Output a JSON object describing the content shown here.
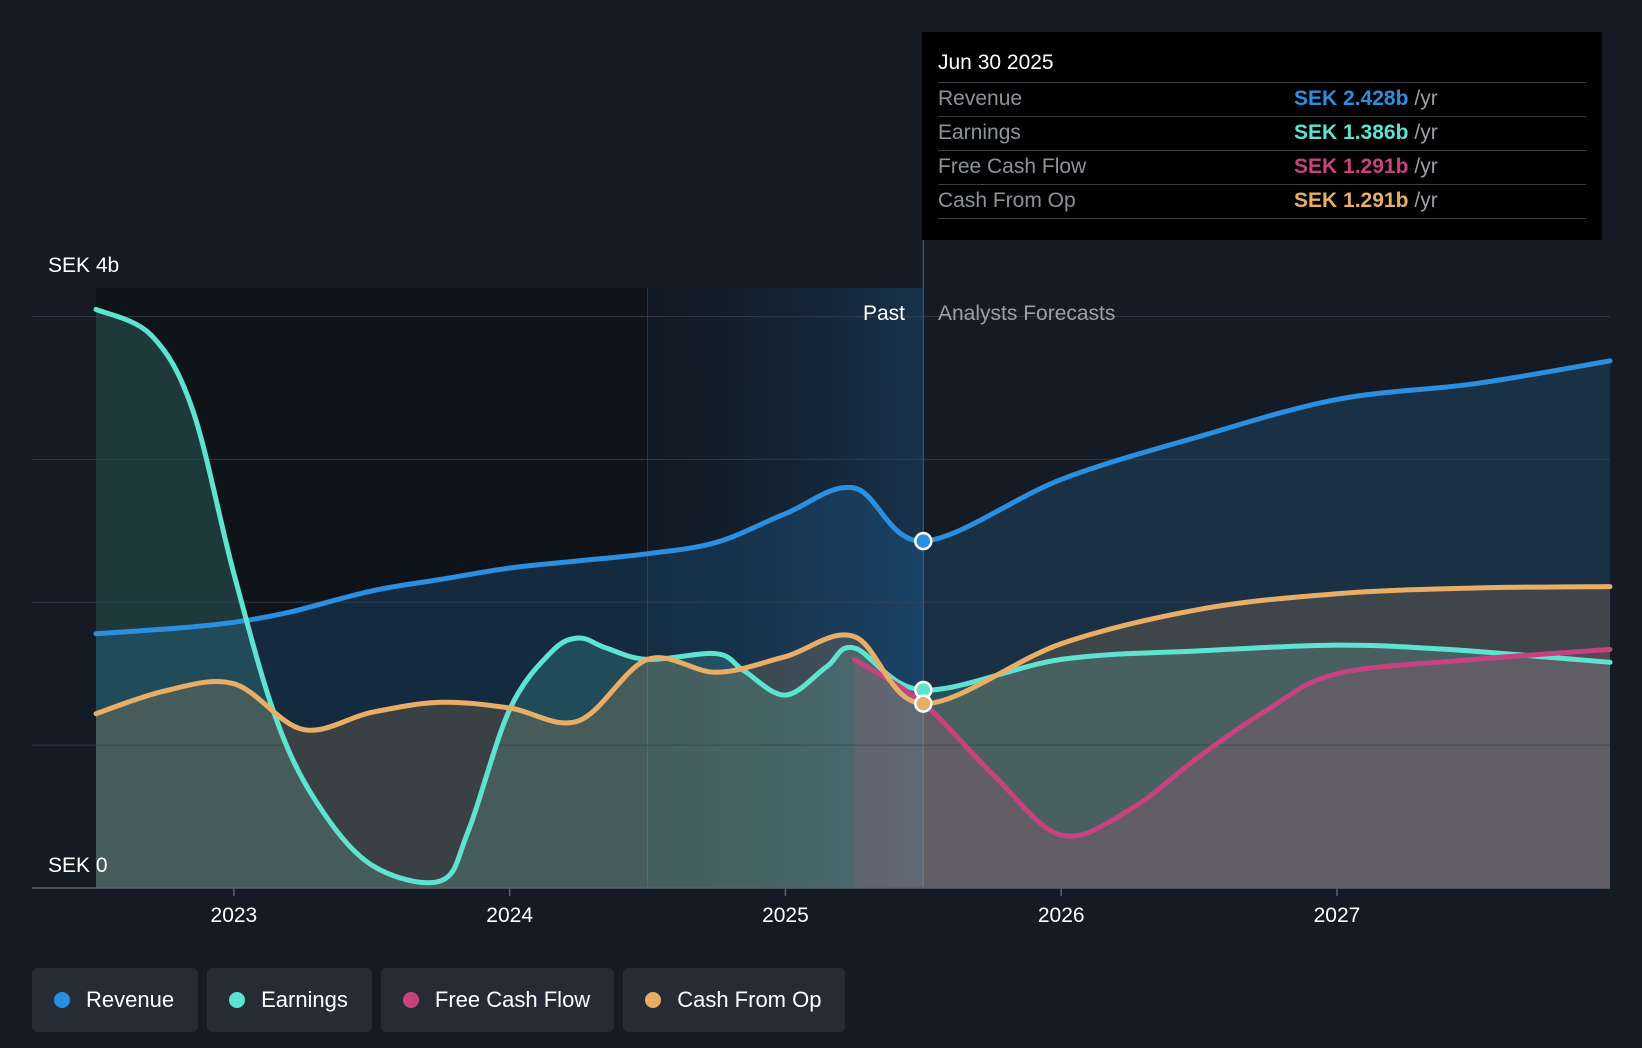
{
  "chart_data": {
    "type": "line",
    "currency": "SEK",
    "y_top_label": "SEK 4b",
    "y_bottom_label": "SEK 0",
    "ylim": [
      0,
      4.2
    ],
    "xlim": [
      2022.5,
      2027.99
    ],
    "x_ticks": [
      {
        "label": "2023",
        "value": 2023.0
      },
      {
        "label": "2024",
        "value": 2024.0
      },
      {
        "label": "2025",
        "value": 2025.0
      },
      {
        "label": "2026",
        "value": 2026.0
      },
      {
        "label": "2027",
        "value": 2027.0
      }
    ],
    "past_label": "Past",
    "forecast_label": "Analysts Forecasts",
    "past_end": 2025.5,
    "highlight_start": 2024.5,
    "series": [
      {
        "name": "Revenue",
        "color": "#2a8fe0",
        "points": [
          [
            2022.5,
            1.78
          ],
          [
            2022.8,
            1.82
          ],
          [
            2023.0,
            1.86
          ],
          [
            2023.2,
            1.93
          ],
          [
            2023.5,
            2.08
          ],
          [
            2023.75,
            2.16
          ],
          [
            2024.0,
            2.24
          ],
          [
            2024.25,
            2.29
          ],
          [
            2024.5,
            2.34
          ],
          [
            2024.75,
            2.42
          ],
          [
            2025.0,
            2.62
          ],
          [
            2025.25,
            2.8
          ],
          [
            2025.5,
            2.428
          ],
          [
            2026.0,
            2.86
          ],
          [
            2026.5,
            3.16
          ],
          [
            2027.0,
            3.42
          ],
          [
            2027.5,
            3.53
          ],
          [
            2027.99,
            3.69
          ]
        ]
      },
      {
        "name": "Earnings",
        "color": "#5fe3d1",
        "points": [
          [
            2022.5,
            4.05
          ],
          [
            2022.7,
            3.87
          ],
          [
            2022.85,
            3.35
          ],
          [
            2023.0,
            2.2
          ],
          [
            2023.15,
            1.2
          ],
          [
            2023.3,
            0.6
          ],
          [
            2023.5,
            0.16
          ],
          [
            2023.75,
            0.05
          ],
          [
            2023.85,
            0.4
          ],
          [
            2024.0,
            1.25
          ],
          [
            2024.15,
            1.65
          ],
          [
            2024.25,
            1.75
          ],
          [
            2024.35,
            1.68
          ],
          [
            2024.5,
            1.6
          ],
          [
            2024.75,
            1.64
          ],
          [
            2024.85,
            1.52
          ],
          [
            2025.0,
            1.35
          ],
          [
            2025.15,
            1.55
          ],
          [
            2025.25,
            1.68
          ],
          [
            2025.5,
            1.386
          ],
          [
            2026.0,
            1.6
          ],
          [
            2026.5,
            1.66
          ],
          [
            2027.0,
            1.7
          ],
          [
            2027.4,
            1.67
          ],
          [
            2027.99,
            1.58
          ]
        ]
      },
      {
        "name": "Free Cash Flow",
        "color": "#c7437f",
        "points": [
          [
            2025.25,
            1.6
          ],
          [
            2025.5,
            1.291
          ],
          [
            2025.75,
            0.8
          ],
          [
            2026.0,
            0.37
          ],
          [
            2026.25,
            0.55
          ],
          [
            2026.5,
            0.92
          ],
          [
            2026.75,
            1.25
          ],
          [
            2027.0,
            1.5
          ],
          [
            2027.5,
            1.6
          ],
          [
            2027.99,
            1.67
          ]
        ]
      },
      {
        "name": "Cash From Op",
        "color": "#e8ae65",
        "points": [
          [
            2022.5,
            1.22
          ],
          [
            2022.75,
            1.38
          ],
          [
            2023.0,
            1.43
          ],
          [
            2023.25,
            1.11
          ],
          [
            2023.5,
            1.23
          ],
          [
            2023.75,
            1.3
          ],
          [
            2024.0,
            1.26
          ],
          [
            2024.25,
            1.17
          ],
          [
            2024.5,
            1.6
          ],
          [
            2024.75,
            1.51
          ],
          [
            2025.0,
            1.62
          ],
          [
            2025.25,
            1.76
          ],
          [
            2025.5,
            1.291
          ],
          [
            2026.0,
            1.71
          ],
          [
            2026.5,
            1.95
          ],
          [
            2027.0,
            2.06
          ],
          [
            2027.5,
            2.1
          ],
          [
            2027.99,
            2.11
          ]
        ]
      }
    ],
    "markers": [
      {
        "series": "Revenue",
        "x": 2025.5,
        "y": 2.428
      },
      {
        "series": "Earnings",
        "x": 2025.5,
        "y": 1.386
      },
      {
        "series": "Cash From Op",
        "x": 2025.5,
        "y": 1.291
      }
    ]
  },
  "tooltip": {
    "date": "Jun 30 2025",
    "rows": [
      {
        "label": "Revenue",
        "value": "SEK 2.428b",
        "unit": "/yr",
        "color": "#2a8fe0"
      },
      {
        "label": "Earnings",
        "value": "SEK 1.386b",
        "unit": "/yr",
        "color": "#5fe3d1"
      },
      {
        "label": "Free Cash Flow",
        "value": "SEK 1.291b",
        "unit": "/yr",
        "color": "#c7437f"
      },
      {
        "label": "Cash From Op",
        "value": "SEK 1.291b",
        "unit": "/yr",
        "color": "#e8ae65"
      }
    ]
  },
  "legend": [
    {
      "label": "Revenue",
      "color": "#2a8fe0"
    },
    {
      "label": "Earnings",
      "color": "#5fe3d1"
    },
    {
      "label": "Free Cash Flow",
      "color": "#c7437f"
    },
    {
      "label": "Cash From Op",
      "color": "#e8ae65"
    }
  ]
}
